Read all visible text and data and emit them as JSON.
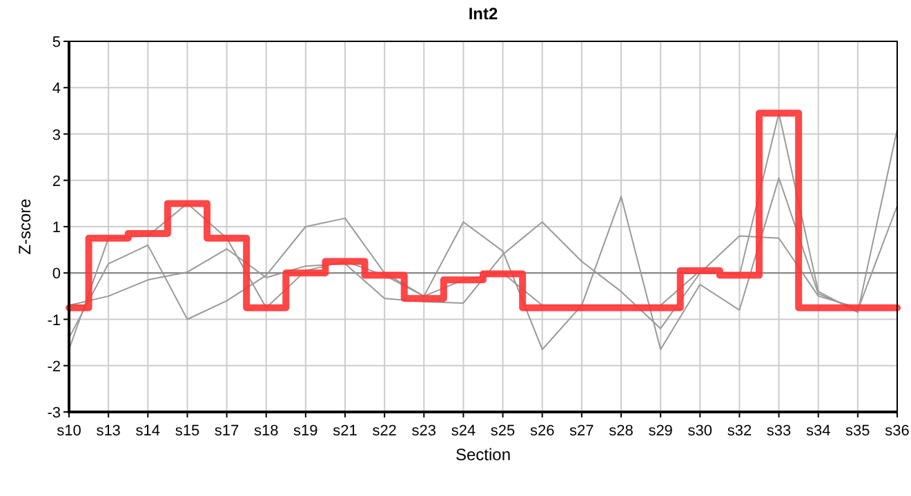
{
  "chart_data": {
    "type": "line",
    "title": "Int2",
    "xlabel": "Section",
    "ylabel": "Z-score",
    "categories": [
      "s10",
      "s13",
      "s14",
      "s15",
      "s17",
      "s18",
      "s19",
      "s21",
      "s22",
      "s23",
      "s24",
      "s25",
      "s26",
      "s27",
      "s28",
      "s29",
      "s30",
      "s32",
      "s33",
      "s34",
      "s35",
      "s36"
    ],
    "ylim": [
      -3,
      5
    ],
    "yticks": [
      -3,
      -2,
      -1,
      0,
      1,
      2,
      3,
      4,
      5
    ],
    "grid": true,
    "marker": "none",
    "line_style": "solid",
    "ref_lines": [
      {
        "axis": "y",
        "value": 0,
        "color": "#808080"
      }
    ],
    "series": [
      {
        "color": "#999999",
        "values": [
          -1.65,
          0.75,
          0.8,
          1.5,
          0.75,
          -0.75,
          0.05,
          0.25,
          -0.05,
          -0.5,
          -0.15,
          0.0,
          -0.7,
          -0.7,
          -0.7,
          -0.7,
          0.05,
          -0.05,
          3.45,
          -0.4,
          -0.85,
          3.1
        ]
      },
      {
        "color": "#999999",
        "values": [
          -1.4,
          0.2,
          0.6,
          -1.0,
          -0.6,
          -0.05,
          1.0,
          1.18,
          0.0,
          -0.5,
          1.1,
          0.47,
          -1.65,
          -0.7,
          1.65,
          -1.65,
          -0.25,
          -0.8,
          2.05,
          -0.45,
          -0.8,
          1.45
        ]
      },
      {
        "color": "#999999",
        "values": [
          -0.7,
          -0.5,
          -0.15,
          0.02,
          0.52,
          -0.1,
          0.15,
          0.2,
          -0.55,
          -0.62,
          -0.65,
          0.4,
          1.1,
          0.25,
          -0.4,
          -1.2,
          0.0,
          0.8,
          0.75,
          -0.5,
          -0.75,
          null
        ]
      },
      {
        "type": "step",
        "color": "#ff3333",
        "values": [
          -0.75,
          0.75,
          0.85,
          1.5,
          0.75,
          -0.75,
          0.0,
          0.25,
          -0.05,
          -0.55,
          -0.15,
          -0.02,
          -0.75,
          -0.75,
          -0.75,
          -0.75,
          0.05,
          -0.05,
          3.45,
          -0.75,
          -0.75,
          -0.75
        ]
      }
    ]
  }
}
